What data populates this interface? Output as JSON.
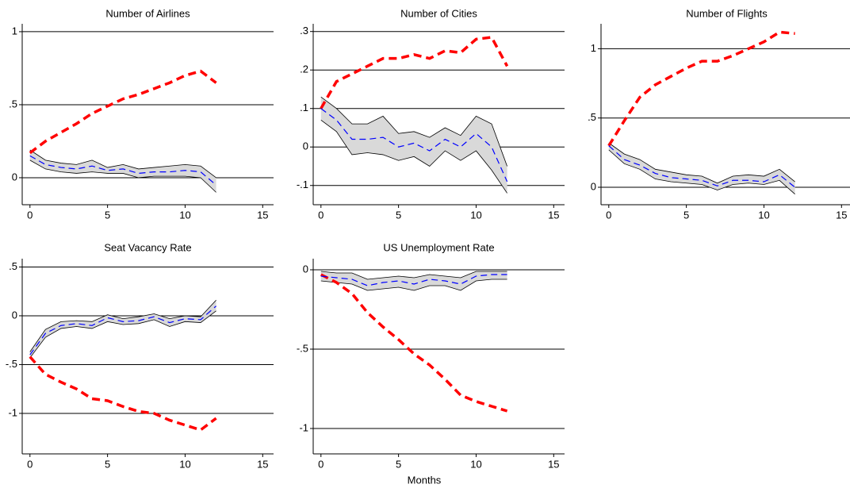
{
  "chart_data": [
    {
      "type": "line",
      "title": "Number of Airlines",
      "x": [
        0,
        1,
        2,
        3,
        4,
        5,
        6,
        7,
        8,
        9,
        10,
        11,
        12
      ],
      "xlim": [
        -0.5,
        15.7
      ],
      "xticks": [
        0,
        5,
        10,
        15
      ],
      "ylim": [
        -0.185,
        1.054
      ],
      "yticks": [
        0,
        {
          "value": 0.5,
          "label": ".5"
        },
        1
      ],
      "grid": true,
      "band": {
        "upper": [
          0.19,
          0.12,
          0.1,
          0.09,
          0.12,
          0.07,
          0.09,
          0.06,
          0.07,
          0.08,
          0.09,
          0.08,
          0.0
        ],
        "lower": [
          0.12,
          0.06,
          0.04,
          0.03,
          0.04,
          0.03,
          0.03,
          0.0,
          0.01,
          0.01,
          0.01,
          0.0,
          -0.1
        ],
        "color": "#d9d9d9",
        "edge": "#000000"
      },
      "series": [
        {
          "color": "#ff0000",
          "style": "thick-dash",
          "values": [
            0.17,
            0.25,
            0.31,
            0.37,
            0.44,
            0.49,
            0.54,
            0.57,
            0.61,
            0.65,
            0.7,
            0.73,
            0.65
          ]
        },
        {
          "color": "#0000ff",
          "style": "dash",
          "values": [
            0.15,
            0.09,
            0.07,
            0.06,
            0.08,
            0.05,
            0.06,
            0.03,
            0.04,
            0.04,
            0.05,
            0.04,
            -0.05
          ]
        }
      ]
    },
    {
      "type": "line",
      "title": "Number of Cities",
      "x": [
        0,
        1,
        2,
        3,
        4,
        5,
        6,
        7,
        8,
        9,
        10,
        11,
        12
      ],
      "xlim": [
        -0.5,
        15.7
      ],
      "xticks": [
        0,
        5,
        10,
        15
      ],
      "ylim": [
        -0.15,
        0.32
      ],
      "yticks": [
        {
          "value": -0.1,
          "label": "-.1"
        },
        0,
        {
          "value": 0.1,
          "label": ".1"
        },
        {
          "value": 0.2,
          "label": ".2"
        },
        {
          "value": 0.3,
          "label": ".3"
        }
      ],
      "grid": true,
      "band": {
        "upper": [
          0.13,
          0.1,
          0.06,
          0.06,
          0.08,
          0.035,
          0.04,
          0.025,
          0.05,
          0.03,
          0.08,
          0.06,
          -0.05
        ],
        "lower": [
          0.07,
          0.04,
          -0.02,
          -0.015,
          -0.02,
          -0.035,
          -0.025,
          -0.05,
          -0.01,
          -0.035,
          -0.01,
          -0.06,
          -0.12
        ],
        "color": "#d9d9d9",
        "edge": "#000000"
      },
      "series": [
        {
          "color": "#ff0000",
          "style": "thick-dash",
          "values": [
            0.1,
            0.17,
            0.19,
            0.21,
            0.23,
            0.23,
            0.24,
            0.23,
            0.25,
            0.245,
            0.28,
            0.285,
            0.21
          ]
        },
        {
          "color": "#0000ff",
          "style": "dash",
          "values": [
            0.1,
            0.07,
            0.02,
            0.02,
            0.025,
            0.0,
            0.01,
            -0.01,
            0.02,
            0.0,
            0.035,
            0.0,
            -0.09
          ]
        }
      ]
    },
    {
      "type": "line",
      "title": "Number of Flights",
      "x": [
        0,
        1,
        2,
        3,
        4,
        5,
        6,
        7,
        8,
        9,
        10,
        11,
        12
      ],
      "xlim": [
        -0.5,
        15.7
      ],
      "xticks": [
        0,
        5,
        10,
        15
      ],
      "ylim": [
        -0.126,
        1.18
      ],
      "yticks": [
        0,
        {
          "value": 0.5,
          "label": ".5"
        },
        1
      ],
      "grid": true,
      "band": {
        "upper": [
          0.32,
          0.24,
          0.2,
          0.13,
          0.11,
          0.09,
          0.08,
          0.03,
          0.08,
          0.09,
          0.08,
          0.13,
          0.04
        ],
        "lower": [
          0.27,
          0.17,
          0.13,
          0.06,
          0.04,
          0.03,
          0.02,
          -0.02,
          0.02,
          0.03,
          0.02,
          0.05,
          -0.05
        ],
        "color": "#d9d9d9",
        "edge": "#000000"
      },
      "series": [
        {
          "color": "#ff0000",
          "style": "thick-dash",
          "values": [
            0.3,
            0.48,
            0.65,
            0.74,
            0.8,
            0.86,
            0.91,
            0.91,
            0.95,
            1.0,
            1.05,
            1.12,
            1.11
          ]
        },
        {
          "color": "#0000ff",
          "style": "dash",
          "values": [
            0.3,
            0.2,
            0.16,
            0.1,
            0.07,
            0.06,
            0.05,
            0.01,
            0.05,
            0.05,
            0.04,
            0.09,
            0.0
          ]
        }
      ]
    },
    {
      "type": "line",
      "title": "Seat Vacancy Rate",
      "x": [
        0,
        1,
        2,
        3,
        4,
        5,
        6,
        7,
        8,
        9,
        10,
        11,
        12
      ],
      "xlim": [
        -0.5,
        15.7
      ],
      "xticks": [
        0,
        5,
        10,
        15
      ],
      "ylim": [
        -1.415,
        0.585
      ],
      "yticks": [
        -1,
        {
          "value": -0.5,
          "label": "-.5"
        },
        0,
        {
          "value": 0.5,
          "label": ".5"
        }
      ],
      "grid": true,
      "band": {
        "upper": [
          -0.37,
          -0.14,
          -0.06,
          -0.05,
          -0.06,
          0.01,
          -0.03,
          -0.01,
          0.02,
          -0.03,
          0.0,
          -0.01,
          0.16
        ],
        "lower": [
          -0.43,
          -0.22,
          -0.13,
          -0.11,
          -0.13,
          -0.06,
          -0.09,
          -0.08,
          -0.04,
          -0.11,
          -0.06,
          -0.07,
          0.05
        ],
        "color": "#d9d9d9",
        "edge": "#000000"
      },
      "series": [
        {
          "color": "#ff0000",
          "style": "thick-dash",
          "values": [
            -0.42,
            -0.6,
            -0.68,
            -0.75,
            -0.85,
            -0.87,
            -0.93,
            -0.98,
            -1.0,
            -1.07,
            -1.12,
            -1.17,
            -1.05
          ]
        },
        {
          "color": "#0000ff",
          "style": "dash",
          "values": [
            -0.4,
            -0.18,
            -0.1,
            -0.08,
            -0.1,
            -0.02,
            -0.06,
            -0.05,
            -0.01,
            -0.07,
            -0.03,
            -0.04,
            0.1
          ]
        }
      ]
    },
    {
      "type": "line",
      "title": "US Unemployment Rate",
      "x": [
        0,
        1,
        2,
        3,
        4,
        5,
        6,
        7,
        8,
        9,
        10,
        11,
        12
      ],
      "xlim": [
        -0.5,
        15.7
      ],
      "xticks": [
        0,
        5,
        10,
        15
      ],
      "ylim": [
        -1.16,
        0.07
      ],
      "yticks": [
        -1,
        {
          "value": -0.5,
          "label": "-.5"
        },
        0
      ],
      "grid": true,
      "band": {
        "upper": [
          -0.01,
          -0.02,
          -0.02,
          -0.06,
          -0.05,
          -0.04,
          -0.05,
          -0.03,
          -0.04,
          -0.05,
          -0.01,
          -0.01,
          -0.01
        ],
        "lower": [
          -0.07,
          -0.08,
          -0.09,
          -0.13,
          -0.12,
          -0.11,
          -0.13,
          -0.1,
          -0.1,
          -0.13,
          -0.07,
          -0.06,
          -0.06
        ],
        "color": "#d9d9d9",
        "edge": "#000000"
      },
      "series": [
        {
          "color": "#ff0000",
          "style": "thick-dash",
          "values": [
            -0.03,
            -0.08,
            -0.15,
            -0.27,
            -0.36,
            -0.44,
            -0.53,
            -0.6,
            -0.69,
            -0.79,
            -0.83,
            -0.86,
            -0.89
          ]
        },
        {
          "color": "#0000ff",
          "style": "dash",
          "values": [
            -0.04,
            -0.05,
            -0.06,
            -0.1,
            -0.08,
            -0.07,
            -0.09,
            -0.06,
            -0.07,
            -0.09,
            -0.04,
            -0.03,
            -0.03
          ]
        }
      ]
    }
  ],
  "xlabel": "Months"
}
